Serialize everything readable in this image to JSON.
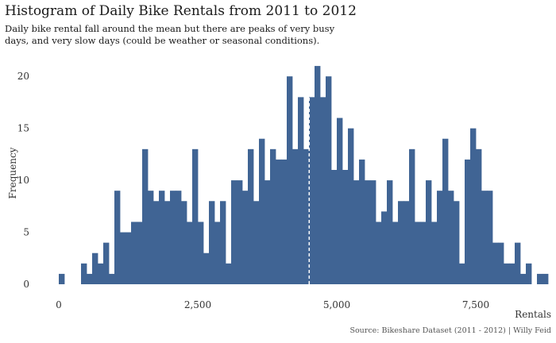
{
  "chart_data": {
    "type": "bar",
    "title": "Histogram of Daily Bike Rentals from 2011 to 2012",
    "subtitle": "Daily bike rental fall around the mean but there are peaks of very busy days, and very slow days (could be weather or seasonal conditions).",
    "xlabel": "Rentals",
    "ylabel": "Frequency",
    "source": "Source: Bikeshare Dataset (2011 - 2012) | Willy Feid",
    "bin_width": 100,
    "bins": [
      {
        "x": 0,
        "count": 1
      },
      {
        "x": 100,
        "count": 0
      },
      {
        "x": 200,
        "count": 0
      },
      {
        "x": 300,
        "count": 0
      },
      {
        "x": 400,
        "count": 2
      },
      {
        "x": 500,
        "count": 1
      },
      {
        "x": 600,
        "count": 3
      },
      {
        "x": 700,
        "count": 2
      },
      {
        "x": 800,
        "count": 4
      },
      {
        "x": 900,
        "count": 1
      },
      {
        "x": 1000,
        "count": 9
      },
      {
        "x": 1100,
        "count": 5
      },
      {
        "x": 1200,
        "count": 5
      },
      {
        "x": 1300,
        "count": 6
      },
      {
        "x": 1400,
        "count": 6
      },
      {
        "x": 1500,
        "count": 13
      },
      {
        "x": 1600,
        "count": 9
      },
      {
        "x": 1700,
        "count": 8
      },
      {
        "x": 1800,
        "count": 9
      },
      {
        "x": 1900,
        "count": 8
      },
      {
        "x": 2000,
        "count": 9
      },
      {
        "x": 2100,
        "count": 9
      },
      {
        "x": 2200,
        "count": 8
      },
      {
        "x": 2300,
        "count": 6
      },
      {
        "x": 2400,
        "count": 13
      },
      {
        "x": 2500,
        "count": 6
      },
      {
        "x": 2600,
        "count": 3
      },
      {
        "x": 2700,
        "count": 8
      },
      {
        "x": 2800,
        "count": 6
      },
      {
        "x": 2900,
        "count": 8
      },
      {
        "x": 3000,
        "count": 2
      },
      {
        "x": 3100,
        "count": 10
      },
      {
        "x": 3200,
        "count": 10
      },
      {
        "x": 3300,
        "count": 9
      },
      {
        "x": 3400,
        "count": 13
      },
      {
        "x": 3500,
        "count": 8
      },
      {
        "x": 3600,
        "count": 14
      },
      {
        "x": 3700,
        "count": 10
      },
      {
        "x": 3800,
        "count": 13
      },
      {
        "x": 3900,
        "count": 12
      },
      {
        "x": 4000,
        "count": 12
      },
      {
        "x": 4100,
        "count": 20
      },
      {
        "x": 4200,
        "count": 13
      },
      {
        "x": 4300,
        "count": 18
      },
      {
        "x": 4400,
        "count": 13
      },
      {
        "x": 4500,
        "count": 18
      },
      {
        "x": 4600,
        "count": 21
      },
      {
        "x": 4700,
        "count": 18
      },
      {
        "x": 4800,
        "count": 20
      },
      {
        "x": 4900,
        "count": 11
      },
      {
        "x": 5000,
        "count": 16
      },
      {
        "x": 5100,
        "count": 11
      },
      {
        "x": 5200,
        "count": 15
      },
      {
        "x": 5300,
        "count": 10
      },
      {
        "x": 5400,
        "count": 12
      },
      {
        "x": 5500,
        "count": 10
      },
      {
        "x": 5600,
        "count": 10
      },
      {
        "x": 5700,
        "count": 6
      },
      {
        "x": 5800,
        "count": 7
      },
      {
        "x": 5900,
        "count": 10
      },
      {
        "x": 6000,
        "count": 6
      },
      {
        "x": 6100,
        "count": 8
      },
      {
        "x": 6200,
        "count": 8
      },
      {
        "x": 6300,
        "count": 13
      },
      {
        "x": 6400,
        "count": 6
      },
      {
        "x": 6500,
        "count": 6
      },
      {
        "x": 6600,
        "count": 10
      },
      {
        "x": 6700,
        "count": 6
      },
      {
        "x": 6800,
        "count": 9
      },
      {
        "x": 6900,
        "count": 14
      },
      {
        "x": 7000,
        "count": 9
      },
      {
        "x": 7100,
        "count": 8
      },
      {
        "x": 7200,
        "count": 2
      },
      {
        "x": 7300,
        "count": 12
      },
      {
        "x": 7400,
        "count": 15
      },
      {
        "x": 7500,
        "count": 13
      },
      {
        "x": 7600,
        "count": 9
      },
      {
        "x": 7700,
        "count": 9
      },
      {
        "x": 7800,
        "count": 4
      },
      {
        "x": 7900,
        "count": 4
      },
      {
        "x": 8000,
        "count": 2
      },
      {
        "x": 8100,
        "count": 2
      },
      {
        "x": 8200,
        "count": 4
      },
      {
        "x": 8300,
        "count": 1
      },
      {
        "x": 8400,
        "count": 2
      },
      {
        "x": 8500,
        "count": 0
      },
      {
        "x": 8600,
        "count": 1
      },
      {
        "x": 8700,
        "count": 1
      }
    ],
    "mean": 4504,
    "xlim": [
      -200,
      8800
    ],
    "ylim": [
      0,
      22
    ],
    "xticks": [
      {
        "value": 0,
        "label": "0"
      },
      {
        "value": 2500,
        "label": "2,500"
      },
      {
        "value": 5000,
        "label": "5,000"
      },
      {
        "value": 7500,
        "label": "7,500"
      }
    ],
    "yticks": [
      {
        "value": 0,
        "label": "0"
      },
      {
        "value": 5,
        "label": "5"
      },
      {
        "value": 10,
        "label": "10"
      },
      {
        "value": 15,
        "label": "15"
      },
      {
        "value": 20,
        "label": "20"
      }
    ],
    "grid": false,
    "colors": {
      "bar": "#406494",
      "mean_line": "#ffffff"
    }
  }
}
